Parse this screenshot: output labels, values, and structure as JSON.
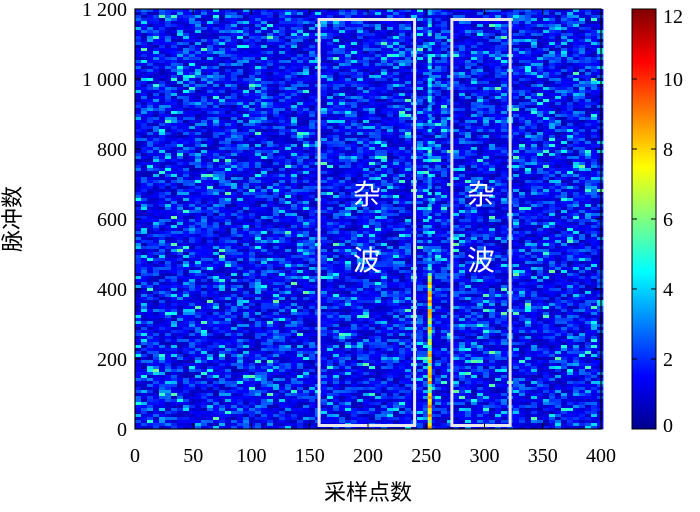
{
  "chart_data": {
    "type": "heatmap",
    "title": "",
    "xlabel": "采样点数",
    "ylabel": "脉冲数",
    "xlim": [
      0,
      400
    ],
    "ylim": [
      0,
      1200
    ],
    "x_ticks": [
      {
        "value": 0,
        "label": "0"
      },
      {
        "value": 50,
        "label": "50"
      },
      {
        "value": 100,
        "label": "100"
      },
      {
        "value": 150,
        "label": "150"
      },
      {
        "value": 200,
        "label": "200"
      },
      {
        "value": 250,
        "label": "250"
      },
      {
        "value": 300,
        "label": "300"
      },
      {
        "value": 350,
        "label": "350"
      },
      {
        "value": 400,
        "label": "400"
      }
    ],
    "y_ticks": [
      {
        "value": 0,
        "label": "0"
      },
      {
        "value": 200,
        "label": "200"
      },
      {
        "value": 400,
        "label": "400"
      },
      {
        "value": 600,
        "label": "600"
      },
      {
        "value": 800,
        "label": "800"
      },
      {
        "value": 1000,
        "label": "1 000"
      },
      {
        "value": 1200,
        "label": "1 200"
      }
    ],
    "colorbar": {
      "range": [
        0,
        12
      ],
      "colormap": "jet",
      "ticks": [
        {
          "value": 0,
          "label": "0"
        },
        {
          "value": 2,
          "label": "2"
        },
        {
          "value": 4,
          "label": "4"
        },
        {
          "value": 6,
          "label": "6"
        },
        {
          "value": 8,
          "label": "8"
        },
        {
          "value": 10,
          "label": "10"
        },
        {
          "value": 12,
          "label": "12"
        }
      ]
    },
    "background_level": 1.2,
    "target_column": {
      "x": 253,
      "y_range": [
        0,
        1200
      ],
      "strong_y_range": [
        0,
        450
      ],
      "level": 7
    },
    "annotations": [
      {
        "label_lines": [
          "杂",
          "波"
        ],
        "x_range": [
          158,
          240
        ],
        "y_range": [
          10,
          1170
        ]
      },
      {
        "label_lines": [
          "杂",
          "波"
        ],
        "x_range": [
          272,
          322
        ],
        "y_range": [
          10,
          1170
        ]
      }
    ],
    "grid": false,
    "legend": "colorbar-right"
  }
}
